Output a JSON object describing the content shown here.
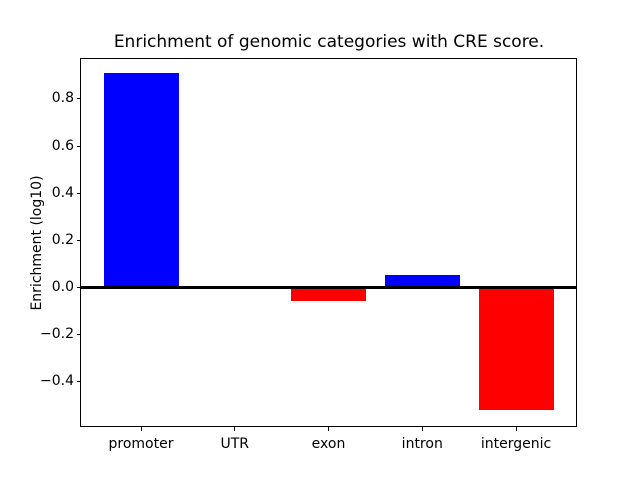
{
  "chart_data": {
    "type": "bar",
    "title": "Enrichment of genomic categories with CRE score.",
    "xlabel": "",
    "ylabel": "Enrichment (log10)",
    "categories": [
      "promoter",
      "UTR",
      "exon",
      "intron",
      "intergenic"
    ],
    "values": [
      0.91,
      0.0,
      -0.06,
      0.05,
      -0.52
    ],
    "bar_colors": [
      "#0000ff",
      "#0000ff",
      "#ff0000",
      "#0000ff",
      "#ff0000"
    ],
    "bar_width": 0.8,
    "yticks": [
      0.8,
      0.6,
      0.4,
      0.2,
      0.0,
      -0.2,
      -0.4
    ],
    "ytick_labels": [
      "0.8",
      "0.6",
      "0.4",
      "0.2",
      "0.0",
      "−0.2",
      "−0.4"
    ],
    "ylim": [
      -0.59,
      0.97
    ],
    "xlim": [
      -0.64,
      4.64
    ],
    "grid": false,
    "legend": null,
    "zero_line": true,
    "background_color": "#ffffff",
    "axis_color": "#000000"
  }
}
